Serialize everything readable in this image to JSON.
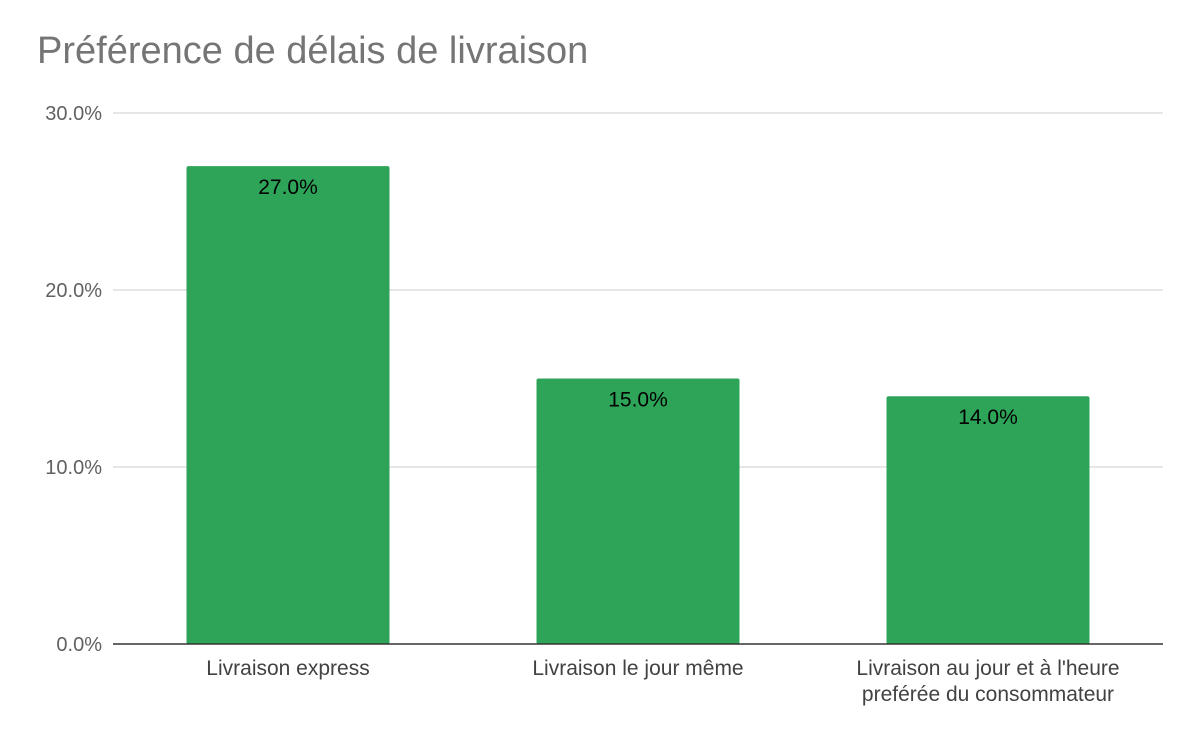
{
  "chart_data": {
    "type": "bar",
    "title": "Préférence de délais de livraison",
    "xlabel": "",
    "ylabel": "",
    "categories": [
      [
        "Livraison express"
      ],
      [
        "Livraison le jour même"
      ],
      [
        "Livraison au jour et à l'heure",
        "preférée du consommateur"
      ]
    ],
    "values": [
      27.0,
      15.0,
      14.0
    ],
    "data_labels": [
      "27.0%",
      "15.0%",
      "14.0%"
    ],
    "y_ticks": [
      0,
      10,
      20,
      30
    ],
    "y_tick_labels": [
      "0.0%",
      "10.0%",
      "20.0%",
      "30.0%"
    ],
    "ylim": [
      0,
      30
    ],
    "grid": true,
    "legend": "none",
    "colors": {
      "bar": "#2ea458",
      "grid": "#cccccc",
      "axis": "#333333"
    }
  }
}
